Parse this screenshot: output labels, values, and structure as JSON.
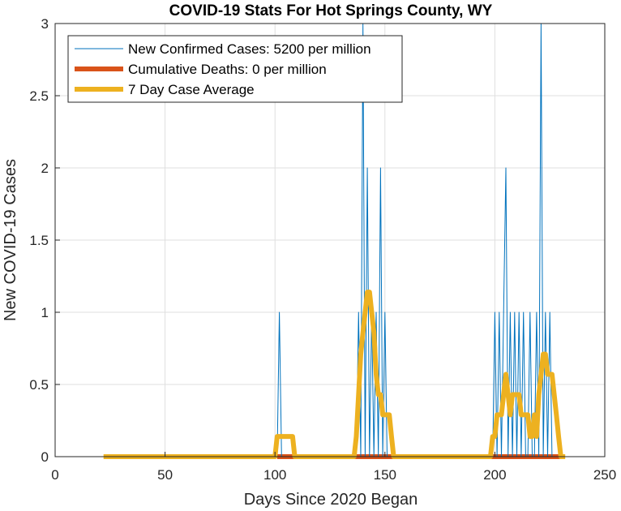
{
  "chart_data": {
    "type": "line",
    "title": "COVID-19 Stats For Hot Springs County, WY",
    "xlabel": "Days Since 2020 Began",
    "ylabel": "New COVID-19 Cases",
    "xlim": [
      0,
      250
    ],
    "ylim": [
      0,
      3
    ],
    "xticks": [
      0,
      50,
      100,
      150,
      200,
      250
    ],
    "xtick_labels": [
      "0",
      "50",
      "100",
      "150",
      "200",
      "250"
    ],
    "yticks": [
      0,
      0.5,
      1,
      1.5,
      2,
      2.5,
      3
    ],
    "ytick_labels": [
      "0",
      "0.5",
      "1",
      "1.5",
      "2",
      "2.5",
      "3"
    ],
    "grid": true,
    "legend_position": "top-left",
    "series": [
      {
        "name": "New Confirmed Cases: 5200 per million",
        "color": "#0072BD",
        "x": [
          22,
          100,
          101,
          102,
          103,
          136,
          137,
          138,
          139,
          140,
          141,
          142,
          143,
          144,
          145,
          146,
          147,
          148,
          149,
          150,
          151,
          152,
          153,
          154,
          155,
          198,
          199,
          200,
          201,
          202,
          203,
          204,
          205,
          206,
          207,
          208,
          209,
          210,
          211,
          212,
          213,
          214,
          215,
          216,
          217,
          218,
          219,
          220,
          221,
          222,
          223,
          224,
          225,
          226,
          227,
          228,
          229,
          230,
          231,
          232
        ],
        "y": [
          0,
          0,
          0,
          1,
          0,
          0,
          0,
          1,
          0,
          3,
          0,
          2,
          0,
          1,
          0,
          1,
          0,
          2,
          0,
          1,
          0,
          0,
          0,
          0,
          0,
          0,
          0,
          1,
          0,
          1,
          0,
          1,
          2,
          0,
          1,
          0,
          1,
          0,
          1,
          0,
          1,
          0,
          0,
          1,
          0,
          0,
          1,
          0,
          3,
          0,
          1,
          0,
          1,
          0,
          0,
          0,
          0,
          0,
          0,
          0
        ]
      },
      {
        "name": "Cumulative Deaths: 0 per million",
        "color": "#D95319",
        "x": [
          101,
          108,
          138,
          155,
          198,
          230
        ],
        "y": [
          0,
          0,
          0,
          0,
          0,
          0
        ]
      },
      {
        "name": "7 Day Case Average",
        "color": "#EDB120",
        "x": [
          22,
          100,
          101,
          102,
          107,
          108,
          109,
          136,
          137,
          138,
          139,
          140,
          141,
          142,
          143,
          144,
          145,
          146,
          147,
          148,
          149,
          150,
          151,
          152,
          153,
          154,
          155,
          198,
          199,
          200,
          201,
          202,
          203,
          204,
          205,
          206,
          207,
          208,
          209,
          210,
          211,
          212,
          213,
          214,
          215,
          216,
          217,
          218,
          219,
          220,
          221,
          222,
          223,
          224,
          225,
          226,
          227,
          228,
          229,
          230,
          231,
          232
        ],
        "y": [
          0,
          0,
          0.14,
          0.14,
          0.14,
          0.14,
          0,
          0,
          0.14,
          0.43,
          0.71,
          0.86,
          1.0,
          1.14,
          1.14,
          1.0,
          0.86,
          0.57,
          0.43,
          0.43,
          0.29,
          0.29,
          0.29,
          0.29,
          0.14,
          0,
          0,
          0,
          0.14,
          0.14,
          0.29,
          0.29,
          0.29,
          0.43,
          0.57,
          0.43,
          0.29,
          0.43,
          0.43,
          0.43,
          0.43,
          0.29,
          0.29,
          0.29,
          0.29,
          0.14,
          0.14,
          0.29,
          0.14,
          0.43,
          0.57,
          0.71,
          0.71,
          0.57,
          0.57,
          0.57,
          0.43,
          0.29,
          0.14,
          0,
          0,
          0
        ]
      }
    ]
  }
}
